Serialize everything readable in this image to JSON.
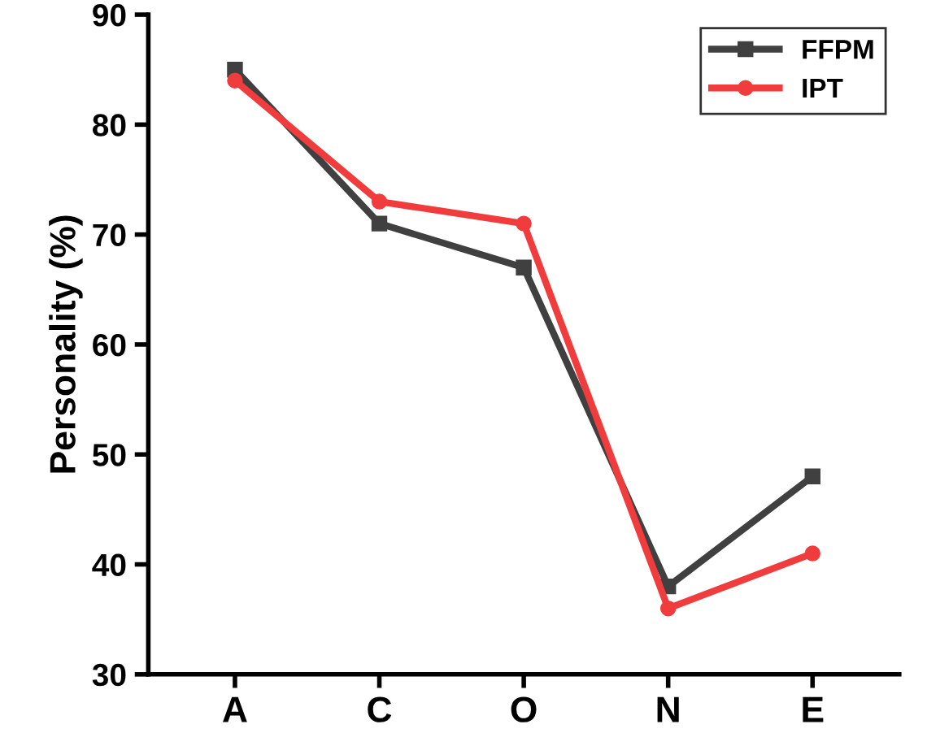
{
  "chart_data": {
    "type": "line",
    "ylabel": "Personality (%)",
    "categories": [
      "A",
      "C",
      "O",
      "N",
      "E"
    ],
    "series": [
      {
        "name": "FFPM",
        "color": "#404040",
        "values": [
          85,
          71,
          67,
          38,
          48
        ],
        "marker": "square"
      },
      {
        "name": "IPT",
        "color": "#f03c3c",
        "values": [
          84,
          73,
          71,
          36,
          41
        ],
        "marker": "circle"
      }
    ],
    "ylim": [
      30,
      90
    ],
    "yticks": [
      30,
      40,
      50,
      60,
      70,
      80,
      90
    ],
    "grid": false,
    "legend": "top right",
    "line_style": "solid"
  }
}
